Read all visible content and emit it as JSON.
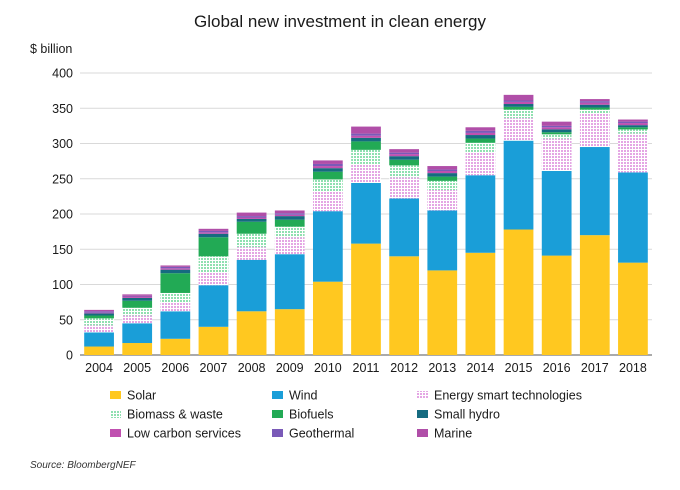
{
  "chart_data": {
    "type": "bar",
    "stacked": true,
    "title": "Global new investment in clean energy",
    "ylabel": "$ billion",
    "ylim": [
      0,
      400
    ],
    "yticks": [
      0,
      50,
      100,
      150,
      200,
      250,
      300,
      350,
      400
    ],
    "grid": true,
    "legend_position": "bottom",
    "categories": [
      "2004",
      "2005",
      "2006",
      "2007",
      "2008",
      "2009",
      "2010",
      "2011",
      "2012",
      "2013",
      "2014",
      "2015",
      "2016",
      "2017",
      "2018"
    ],
    "series": [
      {
        "name": "Solar",
        "color": "#FFC820",
        "values": [
          12,
          17,
          23,
          40,
          62,
          65,
          104,
          158,
          140,
          120,
          145,
          178,
          141,
          170,
          131
        ]
      },
      {
        "name": "Wind",
        "color": "#1A9ED8",
        "values": [
          20,
          28,
          39,
          59,
          73,
          78,
          100,
          86,
          82,
          85,
          110,
          126,
          120,
          125,
          128
        ]
      },
      {
        "name": "Energy smart technologies",
        "color": "#E4A6E4",
        "pattern": "dotted",
        "values": [
          10,
          11,
          12,
          18,
          18,
          24,
          28,
          27,
          30,
          29,
          33,
          32,
          46,
          48,
          55
        ]
      },
      {
        "name": "Biomass & waste",
        "color": "#8FE0B0",
        "pattern": "dotted",
        "values": [
          10,
          11,
          14,
          23,
          19,
          15,
          17,
          20,
          17,
          13,
          13,
          12,
          6,
          5,
          6
        ]
      },
      {
        "name": "Biofuels",
        "color": "#22AA55",
        "values": [
          4,
          10,
          28,
          27,
          17,
          10,
          11,
          12,
          8,
          6,
          6,
          4,
          3,
          3,
          3
        ]
      },
      {
        "name": "Small hydro",
        "color": "#156B80",
        "values": [
          3,
          4,
          5,
          5,
          4,
          5,
          5,
          5,
          5,
          5,
          5,
          4,
          4,
          4,
          3
        ]
      },
      {
        "name": "Low carbon services",
        "color": "#C050B0",
        "values": [
          1,
          2,
          2,
          2,
          2,
          2,
          3,
          3,
          3,
          3,
          3,
          3,
          3,
          3,
          3
        ]
      },
      {
        "name": "Geothermal",
        "color": "#7A5AB8",
        "values": [
          2,
          1,
          2,
          2,
          2,
          2,
          3,
          3,
          2,
          2,
          3,
          2,
          2,
          2,
          2
        ]
      },
      {
        "name": "Marine",
        "color": "#B04EA8",
        "values": [
          2,
          2,
          2,
          3,
          5,
          4,
          5,
          10,
          5,
          5,
          5,
          8,
          6,
          3,
          3
        ]
      }
    ]
  },
  "source": "Source: BloombergNEF"
}
